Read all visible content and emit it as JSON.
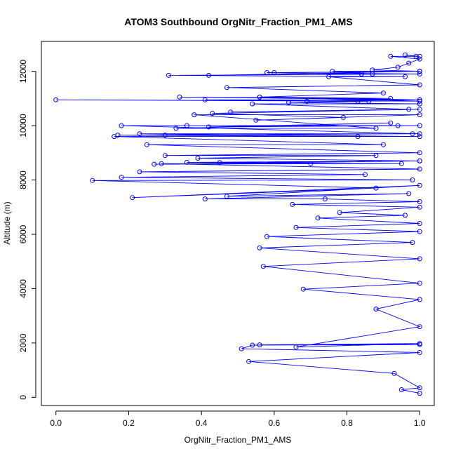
{
  "chart_data": {
    "type": "line",
    "title": "ATOM3 Southbound OrgNitr_Fraction_PM1_AMS",
    "xlabel": "OrgNitr_Fraction_PM1_AMS",
    "ylabel": "Altitude (m)",
    "xlim": [
      -0.04,
      1.04
    ],
    "ylim": [
      -300,
      13100
    ],
    "x_ticks": [
      0.0,
      0.2,
      0.4,
      0.6,
      0.8,
      1.0
    ],
    "x_tick_labels": [
      "0.0",
      "0.2",
      "0.4",
      "0.6",
      "0.8",
      "1.0"
    ],
    "y_ticks": [
      0,
      2000,
      4000,
      6000,
      8000,
      10000,
      12000
    ],
    "y_tick_labels": [
      "0",
      "2000",
      "4000",
      "6000",
      "8000",
      "10000",
      "12000"
    ],
    "grid": false,
    "series_color": "#0000ff",
    "marker": "open-circle",
    "series": [
      {
        "x": [
          1.0,
          0.95,
          1.0,
          0.93,
          0.53,
          1.0,
          0.51,
          0.54,
          1.0,
          0.56,
          1.0,
          0.66,
          1.0,
          0.88,
          1.0,
          0.68,
          1.0,
          0.57,
          1.0,
          0.56,
          0.98,
          0.58,
          1.0,
          0.66,
          1.0,
          0.72,
          0.96,
          0.78,
          1.0,
          0.65,
          1.0,
          0.74,
          0.41,
          0.97,
          0.47,
          1.0,
          0.21,
          0.88,
          0.1,
          0.98,
          0.18,
          0.85,
          0.23,
          1.0,
          0.29,
          0.95,
          0.36,
          1.0,
          0.45,
          0.7,
          0.27,
          1.0,
          0.39,
          0.88,
          0.3,
          1.0,
          0.25,
          0.9,
          0.16,
          1.0,
          0.23,
          0.98,
          0.3,
          0.83,
          0.17,
          1.0,
          0.18,
          0.94,
          0.36,
          1.0,
          0.42,
          0.92,
          0.33,
          0.88,
          0.38,
          1.0,
          0.55,
          0.79,
          0.43,
          1.0,
          0.48,
          0.97,
          0.54,
          1.0,
          0.64,
          0.86,
          0.69,
          1.0,
          0.56,
          0.92,
          0.34,
          1.0,
          0.41,
          0.83,
          0.0,
          1.0,
          0.56,
          0.9,
          0.47,
          1.0,
          0.75,
          0.96,
          0.31,
          1.0,
          0.58,
          0.84,
          0.42,
          1.0,
          0.6,
          0.87,
          0.76,
          1.0,
          0.87,
          0.94,
          0.97,
          1.0,
          0.92,
          1.0,
          0.96,
          0.99
        ],
        "y": [
          150,
          280,
          350,
          880,
          1320,
          1650,
          1790,
          1920,
          1940,
          1930,
          1980,
          1850,
          2600,
          3250,
          3600,
          3980,
          4200,
          4820,
          5100,
          5500,
          5700,
          5920,
          6100,
          6250,
          6400,
          6600,
          6700,
          6800,
          7000,
          7100,
          7200,
          7300,
          7300,
          7500,
          7400,
          7800,
          7350,
          7700,
          7980,
          8000,
          8100,
          8200,
          8300,
          8400,
          8600,
          8600,
          8650,
          8700,
          8640,
          8600,
          8580,
          8700,
          8800,
          8900,
          8900,
          9000,
          9300,
          9300,
          9600,
          9600,
          9700,
          9700,
          9650,
          9600,
          9650,
          9700,
          10000,
          10000,
          10000,
          10000,
          9950,
          10100,
          9900,
          9900,
          10400,
          10400,
          10200,
          10300,
          10450,
          10600,
          10500,
          10600,
          10800,
          10800,
          10850,
          10900,
          10900,
          10950,
          11050,
          11000,
          11050,
          10950,
          10950,
          10900,
          10950,
          10900,
          11050,
          11200,
          11400,
          11500,
          11800,
          11800,
          11850,
          11900,
          11950,
          11900,
          11850,
          12000,
          11950,
          11900,
          12000,
          12000,
          12050,
          12150,
          12300,
          12450,
          12550,
          12550,
          12600,
          12550
        ]
      }
    ]
  }
}
